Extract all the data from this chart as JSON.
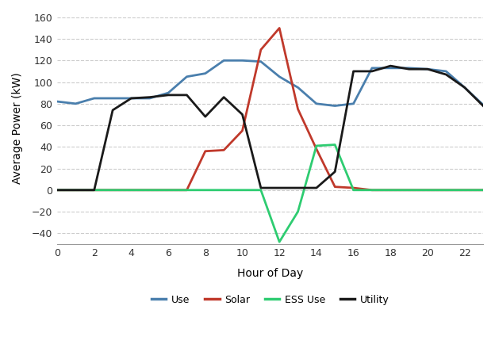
{
  "hours": [
    0,
    1,
    2,
    3,
    4,
    5,
    6,
    7,
    8,
    9,
    10,
    11,
    12,
    13,
    14,
    15,
    16,
    17,
    18,
    19,
    20,
    21,
    22,
    23
  ],
  "use": [
    82,
    80,
    85,
    85,
    85,
    85,
    90,
    105,
    108,
    120,
    120,
    119,
    105,
    95,
    80,
    78,
    80,
    113,
    113,
    113,
    112,
    110,
    95,
    79
  ],
  "solar": [
    0,
    0,
    0,
    0,
    0,
    0,
    0,
    0,
    36,
    37,
    55,
    130,
    150,
    75,
    38,
    3,
    2,
    0,
    0,
    0,
    0,
    0,
    0,
    0
  ],
  "ess_use": [
    0,
    0,
    0,
    0,
    0,
    0,
    0,
    0,
    0,
    0,
    0,
    0,
    -48,
    -20,
    41,
    42,
    0,
    0,
    0,
    0,
    0,
    0,
    0,
    0
  ],
  "utility": [
    0,
    0,
    0,
    74,
    85,
    86,
    88,
    88,
    68,
    86,
    70,
    2,
    2,
    2,
    2,
    17,
    110,
    110,
    115,
    112,
    112,
    107,
    95,
    78
  ],
  "use_color": "#4a7fad",
  "solar_color": "#c0392b",
  "ess_use_color": "#2ecc71",
  "utility_color": "#1a1a1a",
  "xlabel": "Hour of Day",
  "ylabel": "Average Power (kW)",
  "ylim": [
    -50,
    165
  ],
  "xlim": [
    0,
    23
  ],
  "yticks": [
    -40,
    -20,
    0,
    20,
    40,
    60,
    80,
    100,
    120,
    140,
    160
  ],
  "xticks": [
    0,
    2,
    4,
    6,
    8,
    10,
    12,
    14,
    16,
    18,
    20,
    22
  ],
  "bg_color": "#ffffff",
  "grid_color": "#cccccc",
  "linewidth": 2.0,
  "legend_labels": [
    "Use",
    "Solar",
    "ESS Use",
    "Utility"
  ]
}
